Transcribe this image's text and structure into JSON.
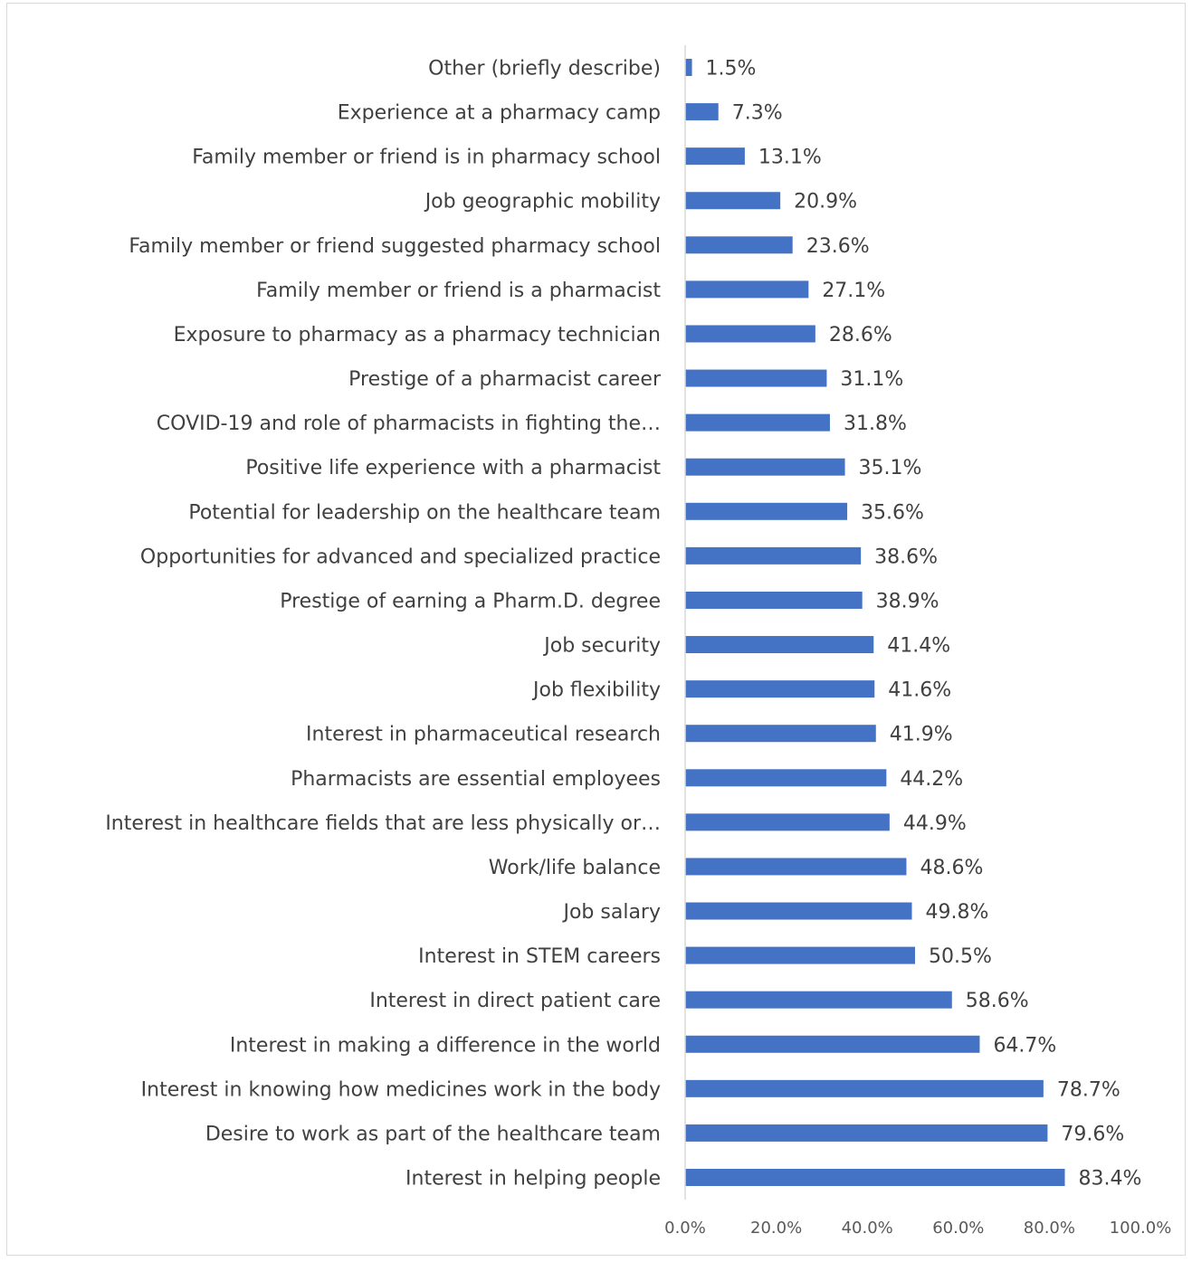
{
  "chart_data": {
    "type": "bar",
    "orientation": "horizontal",
    "categories": [
      "Other (briefly describe)",
      "Experience at a pharmacy camp",
      "Family member or friend is in pharmacy school",
      "Job geographic mobility",
      "Family member or friend suggested pharmacy school",
      "Family member or friend is a pharmacist",
      "Exposure to pharmacy as a pharmacy technician",
      "Prestige of a pharmacist career",
      "COVID-19 and role of pharmacists in fighting the…",
      "Positive life experience with a pharmacist",
      "Potential for leadership on the healthcare team",
      "Opportunities for advanced and specialized practice",
      "Prestige of earning a Pharm.D. degree",
      "Job security",
      "Job flexibility",
      "Interest in pharmaceutical research",
      "Pharmacists are essential employees",
      "Interest in healthcare fields that are less physically or…",
      "Work/life balance",
      "Job salary",
      "Interest in STEM careers",
      "Interest in direct patient care",
      "Interest in making a difference in the world",
      "Interest in knowing how medicines work in the body",
      "Desire to work as part of the healthcare team",
      "Interest in helping people"
    ],
    "values": [
      1.5,
      7.3,
      13.1,
      20.9,
      23.6,
      27.1,
      28.6,
      31.1,
      31.8,
      35.1,
      35.6,
      38.6,
      38.9,
      41.4,
      41.6,
      41.9,
      44.2,
      44.9,
      48.6,
      49.8,
      50.5,
      58.6,
      64.7,
      78.7,
      79.6,
      83.4
    ],
    "value_labels": [
      "1.5%",
      "7.3%",
      "13.1%",
      "20.9%",
      "23.6%",
      "27.1%",
      "28.6%",
      "31.1%",
      "31.8%",
      "35.1%",
      "35.6%",
      "38.6%",
      "38.9%",
      "41.4%",
      "41.6%",
      "41.9%",
      "44.2%",
      "44.9%",
      "48.6%",
      "49.8%",
      "50.5%",
      "58.6%",
      "64.7%",
      "78.7%",
      "79.6%",
      "83.4%"
    ],
    "xlim": [
      0,
      100
    ],
    "xticks": [
      0,
      20,
      40,
      60,
      80,
      100
    ],
    "xtick_labels": [
      "0.0%",
      "20.0%",
      "40.0%",
      "60.0%",
      "80.0%",
      "100.0%"
    ],
    "title": "",
    "xlabel": "",
    "ylabel": "",
    "grid": false,
    "legend": "none",
    "bar_color": "#4472c4",
    "axis_color": "#d9d9d9"
  }
}
